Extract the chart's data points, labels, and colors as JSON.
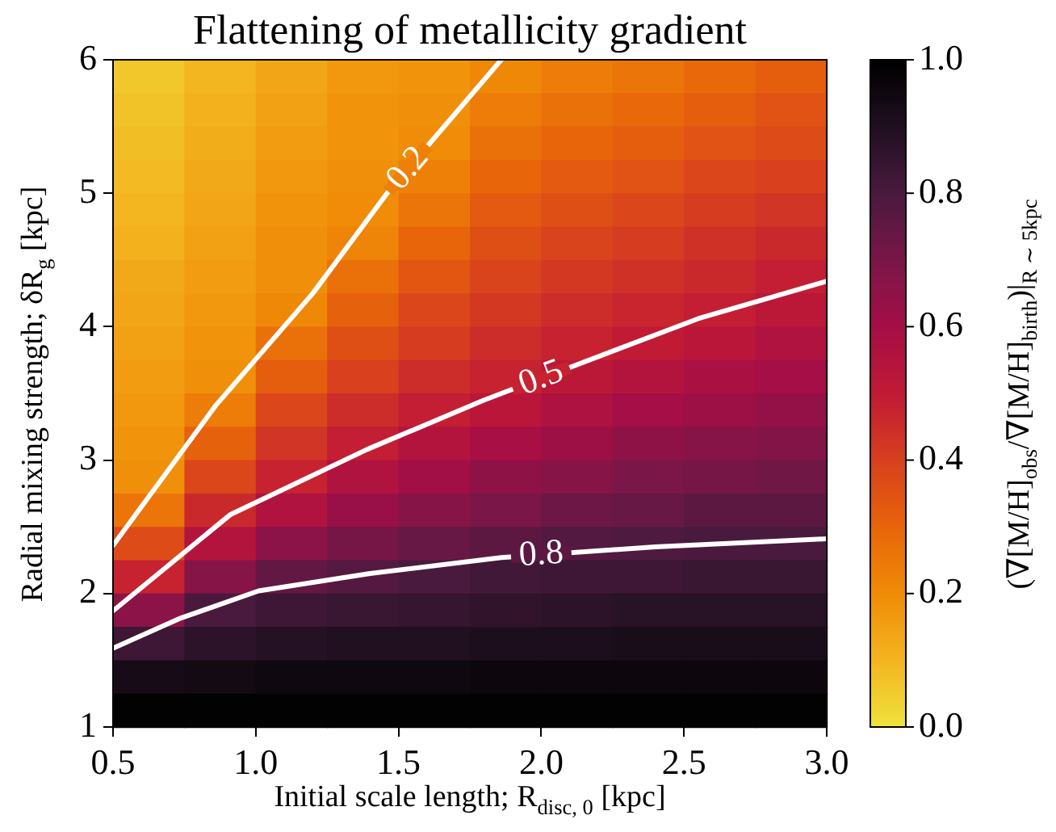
{
  "chart_data": {
    "type": "heatmap",
    "title": "Flattening of metallicity gradient",
    "xlabel": "Initial scale length; R$_{disc, 0}$ [kpc]",
    "ylabel": "Radial mixing strength; δR$_{g}$ [kpc]",
    "clabel": "(∇[M/H]$_{obs}$/∇[M/H]$_{birth}$)|$_{R ∼ 5kpc}$",
    "x": [
      0.625,
      0.875,
      1.125,
      1.375,
      1.625,
      1.875,
      2.125,
      2.375,
      2.625,
      2.875
    ],
    "y": [
      5.875,
      5.625,
      5.375,
      5.125,
      4.875,
      4.625,
      4.375,
      4.125,
      3.875,
      3.625,
      3.375,
      3.125,
      2.875,
      2.625,
      2.375,
      2.125,
      1.875,
      1.625,
      1.375,
      1.125
    ],
    "cells": [
      [
        0.06,
        0.1,
        0.14,
        0.17,
        0.18,
        0.21,
        0.24,
        0.26,
        0.29,
        0.32
      ],
      [
        0.07,
        0.11,
        0.15,
        0.18,
        0.19,
        0.24,
        0.27,
        0.29,
        0.32,
        0.35
      ],
      [
        0.08,
        0.12,
        0.16,
        0.18,
        0.2,
        0.27,
        0.3,
        0.32,
        0.35,
        0.37
      ],
      [
        0.09,
        0.13,
        0.17,
        0.19,
        0.23,
        0.3,
        0.33,
        0.35,
        0.38,
        0.4
      ],
      [
        0.1,
        0.14,
        0.18,
        0.2,
        0.26,
        0.33,
        0.36,
        0.38,
        0.41,
        0.43
      ],
      [
        0.11,
        0.15,
        0.19,
        0.22,
        0.3,
        0.36,
        0.39,
        0.41,
        0.44,
        0.46
      ],
      [
        0.13,
        0.16,
        0.19,
        0.27,
        0.34,
        0.39,
        0.42,
        0.44,
        0.46,
        0.49
      ],
      [
        0.14,
        0.17,
        0.21,
        0.31,
        0.38,
        0.42,
        0.45,
        0.47,
        0.49,
        0.52
      ],
      [
        0.15,
        0.18,
        0.27,
        0.36,
        0.41,
        0.45,
        0.48,
        0.5,
        0.53,
        0.56
      ],
      [
        0.16,
        0.19,
        0.32,
        0.4,
        0.45,
        0.48,
        0.52,
        0.55,
        0.58,
        0.6
      ],
      [
        0.17,
        0.24,
        0.38,
        0.45,
        0.49,
        0.53,
        0.57,
        0.6,
        0.62,
        0.64
      ],
      [
        0.18,
        0.31,
        0.43,
        0.49,
        0.55,
        0.59,
        0.62,
        0.65,
        0.67,
        0.68
      ],
      [
        0.19,
        0.38,
        0.48,
        0.56,
        0.61,
        0.65,
        0.67,
        0.7,
        0.71,
        0.72
      ],
      [
        0.26,
        0.46,
        0.56,
        0.63,
        0.67,
        0.7,
        0.73,
        0.74,
        0.76,
        0.76
      ],
      [
        0.37,
        0.55,
        0.66,
        0.71,
        0.74,
        0.76,
        0.78,
        0.79,
        0.8,
        0.8
      ],
      [
        0.48,
        0.67,
        0.75,
        0.78,
        0.8,
        0.82,
        0.83,
        0.83,
        0.84,
        0.84
      ],
      [
        0.66,
        0.8,
        0.83,
        0.84,
        0.85,
        0.86,
        0.87,
        0.88,
        0.88,
        0.88
      ],
      [
        0.83,
        0.87,
        0.89,
        0.9,
        0.9,
        0.91,
        0.91,
        0.92,
        0.92,
        0.92
      ],
      [
        0.93,
        0.94,
        0.95,
        0.95,
        0.95,
        0.96,
        0.96,
        0.96,
        0.96,
        0.96
      ],
      [
        0.99,
        0.99,
        0.99,
        0.99,
        0.99,
        0.99,
        0.99,
        0.99,
        0.99,
        0.99
      ]
    ],
    "xlim": [
      0.5,
      3.0
    ],
    "xticks": [
      0.5,
      {
        "value": 1,
        "label": "1.0"
      },
      1.5,
      {
        "value": 2,
        "label": "2.0"
      },
      2.5,
      {
        "value": 3,
        "label": "3.0"
      }
    ],
    "ylim": [
      1,
      6
    ],
    "yticks": [
      1,
      2,
      3,
      4,
      5,
      6
    ],
    "clim": [
      0,
      1
    ],
    "cticks": [
      {
        "value": 0,
        "label": "0.0"
      },
      0.2,
      0.4,
      0.6,
      0.8,
      {
        "value": 1,
        "label": "1.0"
      }
    ],
    "series": [
      {
        "type": "line",
        "name": "0.2",
        "color": "#ffffff",
        "x": [
          0.5,
          0.86,
          1.2,
          1.46,
          1.86
        ],
        "values": [
          2.36,
          3.41,
          4.25,
          5.0,
          6.0
        ]
      },
      {
        "type": "line",
        "name": "0.5",
        "color": "#ffffff",
        "x": [
          0.5,
          0.91,
          1.39,
          1.8,
          2.55,
          3.0
        ],
        "values": [
          1.87,
          2.59,
          3.08,
          3.45,
          4.06,
          4.34
        ]
      },
      {
        "type": "line",
        "name": "0.8",
        "color": "#ffffff",
        "x": [
          0.5,
          0.73,
          1.01,
          1.4,
          1.86,
          2.4,
          3.0
        ],
        "values": [
          1.59,
          1.81,
          2.02,
          2.15,
          2.27,
          2.35,
          2.41
        ]
      }
    ]
  }
}
